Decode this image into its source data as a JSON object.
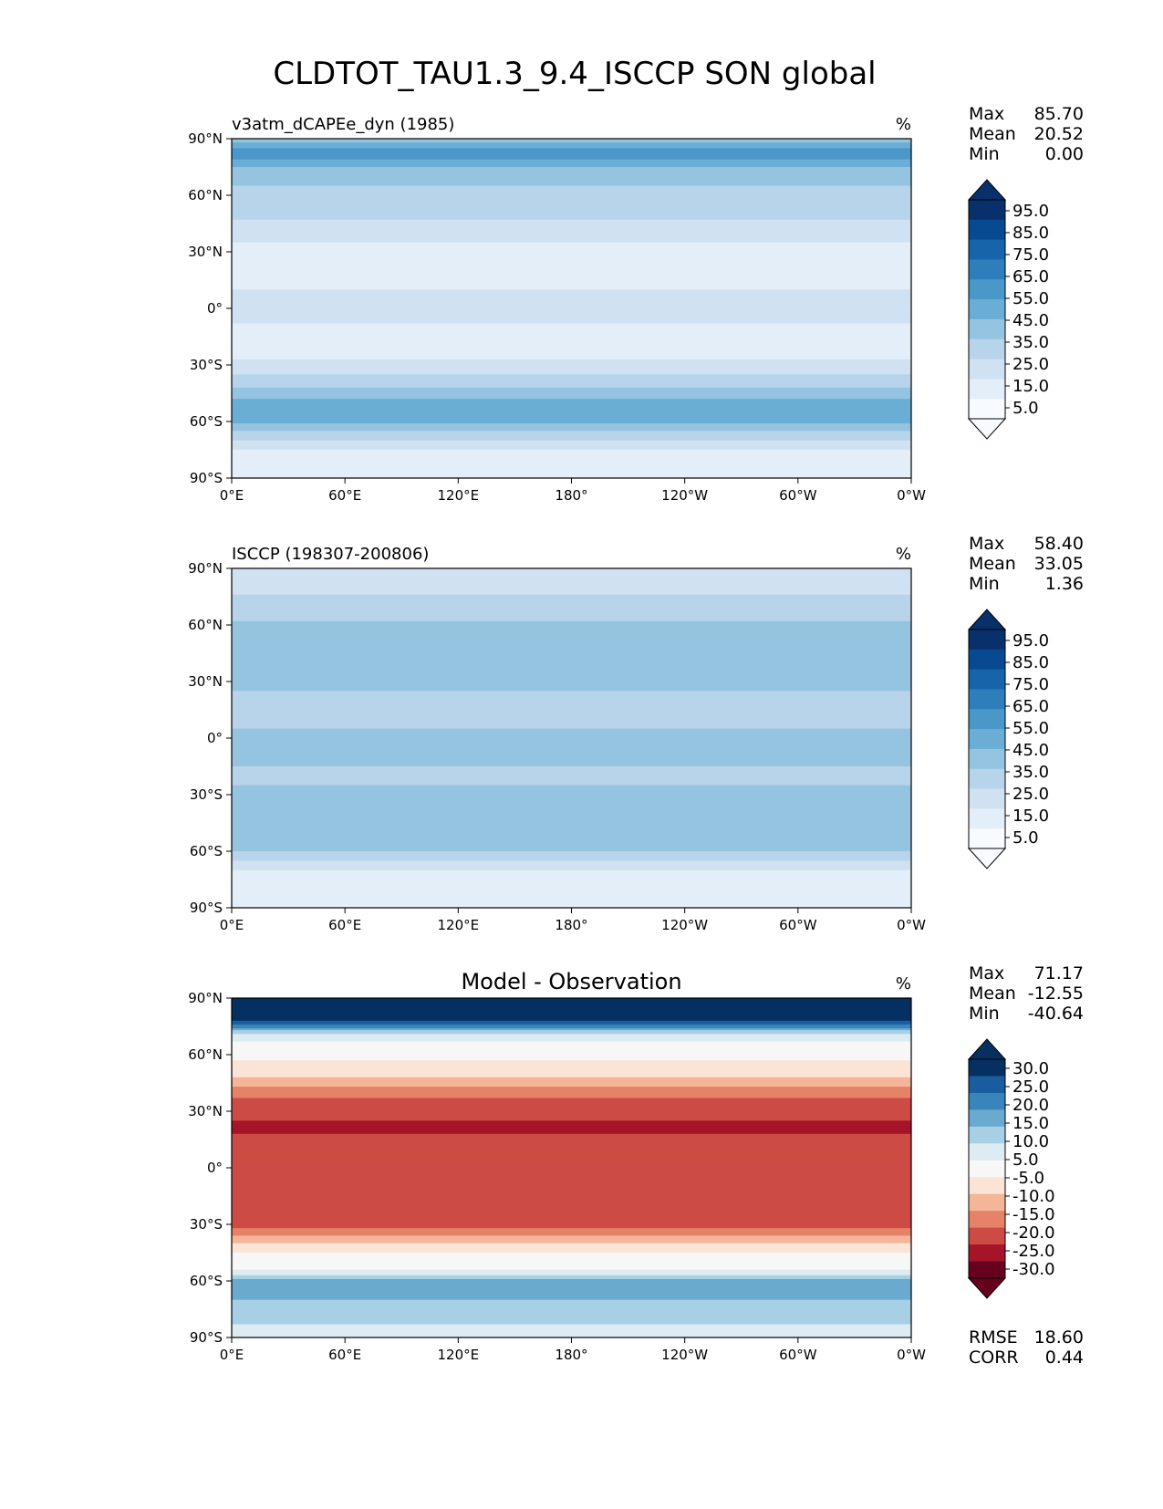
{
  "figure": {
    "title": "CLDTOT_TAU1.3_9.4_ISCCP SON global"
  },
  "axes_ticks": {
    "x": [
      "0°E",
      "60°E",
      "120°E",
      "180°",
      "120°W",
      "60°W",
      "0°W"
    ],
    "y": [
      "90°N",
      "60°N",
      "30°N",
      "0°",
      "30°S",
      "60°S",
      "90°S"
    ]
  },
  "colors": {
    "blues": [
      "#f7fbff",
      "#e3eef8",
      "#d0e1f2",
      "#b7d4ea",
      "#94c4df",
      "#6aaed6",
      "#4a98c9",
      "#2e7ebc",
      "#1764ab",
      "#084a91",
      "#08306b"
    ],
    "diff": [
      "#67001f",
      "#a51429",
      "#cc4c45",
      "#e58268",
      "#f5b598",
      "#fbe3d6",
      "#f7f7f7",
      "#ddebf2",
      "#a8d0e4",
      "#6aaace",
      "#3884bb",
      "#1a5d9f",
      "#053061"
    ]
  },
  "chart_data": [
    {
      "type": "heatmap",
      "panel_id": "model",
      "title_left": "v3atm_dCAPEe_dyn (1985)",
      "units": "%",
      "stats": [
        {
          "label": "Max",
          "value": "85.70"
        },
        {
          "label": "Mean",
          "value": "20.52"
        },
        {
          "label": "Min",
          "value": "0.00"
        }
      ],
      "colorbar_levels": [
        0,
        5,
        15,
        25,
        35,
        45,
        55,
        65,
        75,
        85,
        95,
        100
      ],
      "colorbar_tick_labels": [
        "95.0",
        "85.0",
        "75.0",
        "65.0",
        "55.0",
        "45.0",
        "35.0",
        "25.0",
        "15.0",
        "5.0"
      ],
      "x_range": [
        0,
        360
      ],
      "y_range": [
        -90,
        90
      ],
      "zonal_profile": {
        "lat": [
          -90,
          -75,
          -68,
          -60,
          -52,
          -45,
          -35,
          -25,
          -15,
          -5,
          5,
          15,
          25,
          35,
          45,
          55,
          65,
          75,
          82,
          90
        ],
        "value": [
          12,
          14,
          28,
          48,
          50,
          40,
          25,
          13,
          12,
          16,
          18,
          12,
          10,
          15,
          24,
          30,
          35,
          45,
          62,
          40
        ]
      }
    },
    {
      "type": "heatmap",
      "panel_id": "obs",
      "title_left": "ISCCP (198307-200806)",
      "units": "%",
      "stats": [
        {
          "label": "Max",
          "value": "58.40"
        },
        {
          "label": "Mean",
          "value": "33.05"
        },
        {
          "label": "Min",
          "value": "1.36"
        }
      ],
      "colorbar_levels": [
        0,
        5,
        15,
        25,
        35,
        45,
        55,
        65,
        75,
        85,
        95,
        100
      ],
      "colorbar_tick_labels": [
        "95.0",
        "85.0",
        "75.0",
        "65.0",
        "55.0",
        "45.0",
        "35.0",
        "25.0",
        "15.0",
        "5.0"
      ],
      "x_range": [
        0,
        360
      ],
      "y_range": [
        -90,
        90
      ],
      "zonal_profile": {
        "lat": [
          -90,
          -75,
          -68,
          -60,
          -50,
          -40,
          -30,
          -20,
          -10,
          0,
          10,
          20,
          30,
          40,
          50,
          60,
          70,
          80,
          90
        ],
        "value": [
          10,
          8,
          18,
          35,
          45,
          42,
          36,
          34,
          36,
          38,
          32,
          34,
          36,
          36,
          38,
          36,
          30,
          22,
          15
        ]
      }
    },
    {
      "type": "heatmap",
      "panel_id": "diff",
      "title_center": "Model - Observation",
      "units": "%",
      "stats": [
        {
          "label": "Max",
          "value": "71.17"
        },
        {
          "label": "Mean",
          "value": "-12.55"
        },
        {
          "label": "Min",
          "value": "-40.64"
        }
      ],
      "colorbar_levels": [
        -40,
        -30,
        -25,
        -20,
        -15,
        -10,
        -5,
        5,
        10,
        15,
        20,
        25,
        30,
        40
      ],
      "colorbar_tick_labels": [
        "30.0",
        "25.0",
        "20.0",
        "15.0",
        "10.0",
        "5.0",
        "-5.0",
        "-10.0",
        "-15.0",
        "-20.0",
        "-25.0",
        "-30.0"
      ],
      "x_range": [
        0,
        360
      ],
      "y_range": [
        -90,
        90
      ],
      "zonal_profile": {
        "lat": [
          -90,
          -80,
          -70,
          -62,
          -55,
          -48,
          -40,
          -30,
          -20,
          -10,
          0,
          10,
          20,
          30,
          40,
          50,
          60,
          70,
          80,
          90
        ],
        "value": [
          5,
          12,
          15,
          20,
          6,
          -2,
          -10,
          -22,
          -25,
          -24,
          -20,
          -22,
          -26,
          -24,
          -18,
          -8,
          -4,
          8,
          35,
          35
        ]
      },
      "metrics": [
        {
          "label": "RMSE",
          "value": "18.60"
        },
        {
          "label": "CORR",
          "value": "0.44"
        }
      ]
    }
  ]
}
